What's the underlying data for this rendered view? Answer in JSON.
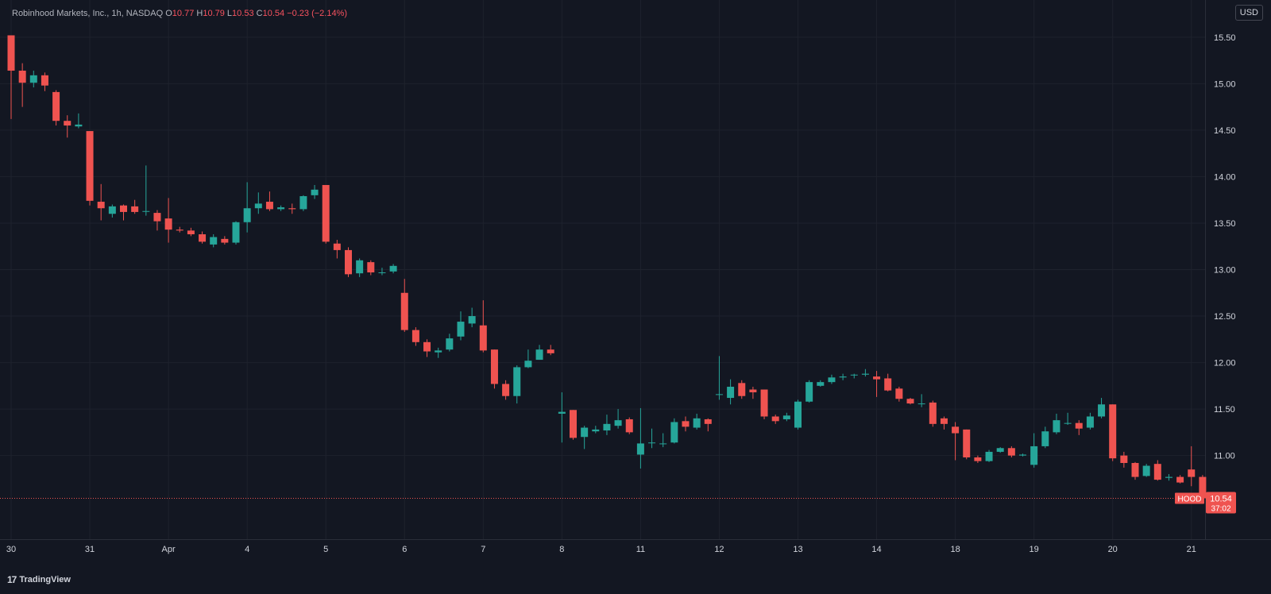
{
  "header": {
    "name": "Robinhood Markets, Inc., 1h, NASDAQ",
    "o_label": "O",
    "o_value": "10.77",
    "h_label": "H",
    "h_value": "10.79",
    "l_label": "L",
    "l_value": "10.53",
    "c_label": "C",
    "c_value": "10.54",
    "change": "−0.23 (−2.14%)"
  },
  "currency": "USD",
  "brand": {
    "logo": "17",
    "name": "TradingView"
  },
  "colors": {
    "background": "#131722",
    "grid": "#1e222d",
    "up": "#26a69a",
    "down": "#ef5350",
    "text": "#d1d4dc"
  },
  "chart_data": {
    "type": "candlestick",
    "symbol": "HOOD",
    "last_price": "10.54",
    "countdown": "37:02",
    "ylim": [
      10.1,
      15.9
    ],
    "y_ticks": [
      "15.50",
      "15.00",
      "14.50",
      "14.00",
      "13.50",
      "13.00",
      "12.50",
      "12.00",
      "11.50",
      "11.00"
    ],
    "x_ticks": [
      "30",
      "31",
      "Apr",
      "4",
      "5",
      "6",
      "7",
      "8",
      "11",
      "12",
      "13",
      "14",
      "18",
      "19",
      "20",
      "21"
    ],
    "x_tick_candle": [
      0,
      7,
      14,
      21,
      28,
      35,
      42,
      49,
      56,
      63,
      70,
      77,
      84,
      91,
      98,
      105
    ],
    "candles": [
      [
        15.52,
        15.14,
        15.52,
        14.62
      ],
      [
        15.14,
        15.01,
        15.22,
        14.75
      ],
      [
        15.01,
        15.09,
        15.14,
        14.96
      ],
      [
        15.09,
        14.98,
        15.12,
        14.92
      ],
      [
        14.91,
        14.6,
        14.93,
        14.55
      ],
      [
        14.6,
        14.55,
        14.66,
        14.42
      ],
      [
        14.54,
        14.56,
        14.68,
        14.52
      ],
      [
        14.49,
        13.74,
        14.49,
        13.69
      ],
      [
        13.73,
        13.66,
        13.92,
        13.53
      ],
      [
        13.6,
        13.68,
        13.7,
        13.56
      ],
      [
        13.69,
        13.62,
        13.7,
        13.53
      ],
      [
        13.68,
        13.62,
        13.75,
        13.6
      ],
      [
        13.63,
        13.63,
        14.12,
        13.58
      ],
      [
        13.61,
        13.52,
        13.64,
        13.42
      ],
      [
        13.55,
        13.43,
        13.77,
        13.29
      ],
      [
        13.43,
        13.42,
        13.46,
        13.4
      ],
      [
        13.42,
        13.38,
        13.45,
        13.36
      ],
      [
        13.38,
        13.3,
        13.41,
        13.28
      ],
      [
        13.27,
        13.35,
        13.38,
        13.24
      ],
      [
        13.33,
        13.29,
        13.36,
        13.27
      ],
      [
        13.29,
        13.51,
        13.52,
        13.27
      ],
      [
        13.51,
        13.66,
        13.94,
        13.4
      ],
      [
        13.66,
        13.71,
        13.83,
        13.6
      ],
      [
        13.73,
        13.65,
        13.84,
        13.63
      ],
      [
        13.65,
        13.67,
        13.69,
        13.63
      ],
      [
        13.66,
        13.65,
        13.71,
        13.6
      ],
      [
        13.65,
        13.79,
        13.8,
        13.63
      ],
      [
        13.8,
        13.86,
        13.91,
        13.76
      ],
      [
        13.91,
        13.3,
        13.91,
        13.28
      ],
      [
        13.28,
        13.21,
        13.32,
        13.12
      ],
      [
        13.21,
        12.95,
        13.24,
        12.92
      ],
      [
        12.96,
        13.1,
        13.12,
        12.92
      ],
      [
        13.08,
        12.97,
        13.1,
        12.94
      ],
      [
        12.97,
        12.97,
        13.02,
        12.94
      ],
      [
        12.98,
        13.04,
        13.06,
        12.96
      ],
      [
        12.75,
        12.35,
        12.9,
        12.33
      ],
      [
        12.35,
        12.22,
        12.38,
        12.18
      ],
      [
        12.22,
        12.12,
        12.25,
        12.06
      ],
      [
        12.11,
        12.13,
        12.16,
        12.05
      ],
      [
        12.14,
        12.26,
        12.31,
        12.12
      ],
      [
        12.28,
        12.44,
        12.55,
        12.24
      ],
      [
        12.42,
        12.5,
        12.59,
        12.38
      ],
      [
        12.4,
        12.13,
        12.67,
        12.11
      ],
      [
        12.14,
        11.77,
        12.14,
        11.72
      ],
      [
        11.77,
        11.64,
        11.81,
        11.6
      ],
      [
        11.64,
        11.95,
        11.97,
        11.56
      ],
      [
        11.95,
        12.02,
        12.14,
        11.94
      ],
      [
        12.03,
        12.14,
        12.19,
        12.03
      ],
      [
        12.14,
        12.1,
        12.19,
        12.08
      ],
      [
        11.45,
        11.47,
        11.68,
        11.14
      ],
      [
        11.49,
        11.19,
        11.49,
        11.17
      ],
      [
        11.2,
        11.3,
        11.32,
        11.07
      ],
      [
        11.26,
        11.28,
        11.32,
        11.24
      ],
      [
        11.27,
        11.34,
        11.44,
        11.22
      ],
      [
        11.32,
        11.38,
        11.5,
        11.29
      ],
      [
        11.39,
        11.25,
        11.41,
        11.23
      ],
      [
        11.01,
        11.13,
        11.51,
        10.86
      ],
      [
        11.14,
        11.14,
        11.29,
        11.08
      ],
      [
        11.13,
        11.13,
        11.24,
        11.09
      ],
      [
        11.14,
        11.36,
        11.4,
        11.13
      ],
      [
        11.37,
        11.31,
        11.42,
        11.26
      ],
      [
        11.3,
        11.4,
        11.45,
        11.28
      ],
      [
        11.39,
        11.34,
        11.4,
        11.26
      ],
      [
        11.66,
        11.66,
        12.07,
        11.6
      ],
      [
        11.62,
        11.74,
        11.82,
        11.55
      ],
      [
        11.78,
        11.64,
        11.81,
        11.61
      ],
      [
        11.71,
        11.68,
        11.74,
        11.61
      ],
      [
        11.71,
        11.42,
        11.71,
        11.39
      ],
      [
        11.42,
        11.37,
        11.44,
        11.34
      ],
      [
        11.39,
        11.43,
        11.46,
        11.37
      ],
      [
        11.3,
        11.58,
        11.6,
        11.28
      ],
      [
        11.58,
        11.79,
        11.81,
        11.57
      ],
      [
        11.75,
        11.79,
        11.81,
        11.74
      ],
      [
        11.79,
        11.84,
        11.87,
        11.77
      ],
      [
        11.84,
        11.85,
        11.88,
        11.81
      ],
      [
        11.87,
        11.87,
        11.88,
        11.83
      ],
      [
        11.87,
        11.88,
        11.93,
        11.85
      ],
      [
        11.85,
        11.82,
        11.91,
        11.63
      ],
      [
        11.83,
        11.7,
        11.88,
        11.69
      ],
      [
        11.72,
        11.61,
        11.74,
        11.58
      ],
      [
        11.61,
        11.56,
        11.62,
        11.55
      ],
      [
        11.56,
        11.56,
        11.66,
        11.52
      ],
      [
        11.57,
        11.34,
        11.59,
        11.31
      ],
      [
        11.4,
        11.34,
        11.42,
        11.28
      ],
      [
        11.31,
        11.24,
        11.36,
        10.95
      ],
      [
        11.28,
        10.98,
        11.28,
        10.96
      ],
      [
        10.98,
        10.94,
        11.0,
        10.92
      ],
      [
        10.94,
        11.04,
        11.06,
        10.93
      ],
      [
        11.04,
        11.08,
        11.09,
        11.03
      ],
      [
        11.08,
        11.0,
        11.1,
        10.98
      ],
      [
        11.0,
        11.01,
        11.02,
        10.99
      ],
      [
        10.9,
        11.1,
        11.24,
        10.87
      ],
      [
        11.1,
        11.26,
        11.31,
        11.08
      ],
      [
        11.25,
        11.38,
        11.45,
        11.23
      ],
      [
        11.35,
        11.35,
        11.46,
        11.33
      ],
      [
        11.35,
        11.29,
        11.38,
        11.22
      ],
      [
        11.3,
        11.42,
        11.46,
        11.28
      ],
      [
        11.42,
        11.55,
        11.62,
        11.4
      ],
      [
        11.55,
        10.97,
        11.55,
        10.94
      ],
      [
        11.0,
        10.92,
        11.04,
        10.87
      ],
      [
        10.92,
        10.77,
        10.93,
        10.74
      ],
      [
        10.78,
        10.89,
        10.91,
        10.77
      ],
      [
        10.91,
        10.74,
        10.95,
        10.73
      ],
      [
        10.76,
        10.77,
        10.8,
        10.73
      ],
      [
        10.77,
        10.71,
        10.79,
        10.7
      ],
      [
        10.85,
        10.77,
        11.1,
        10.67
      ],
      [
        10.77,
        10.54,
        10.79,
        10.53
      ]
    ]
  }
}
